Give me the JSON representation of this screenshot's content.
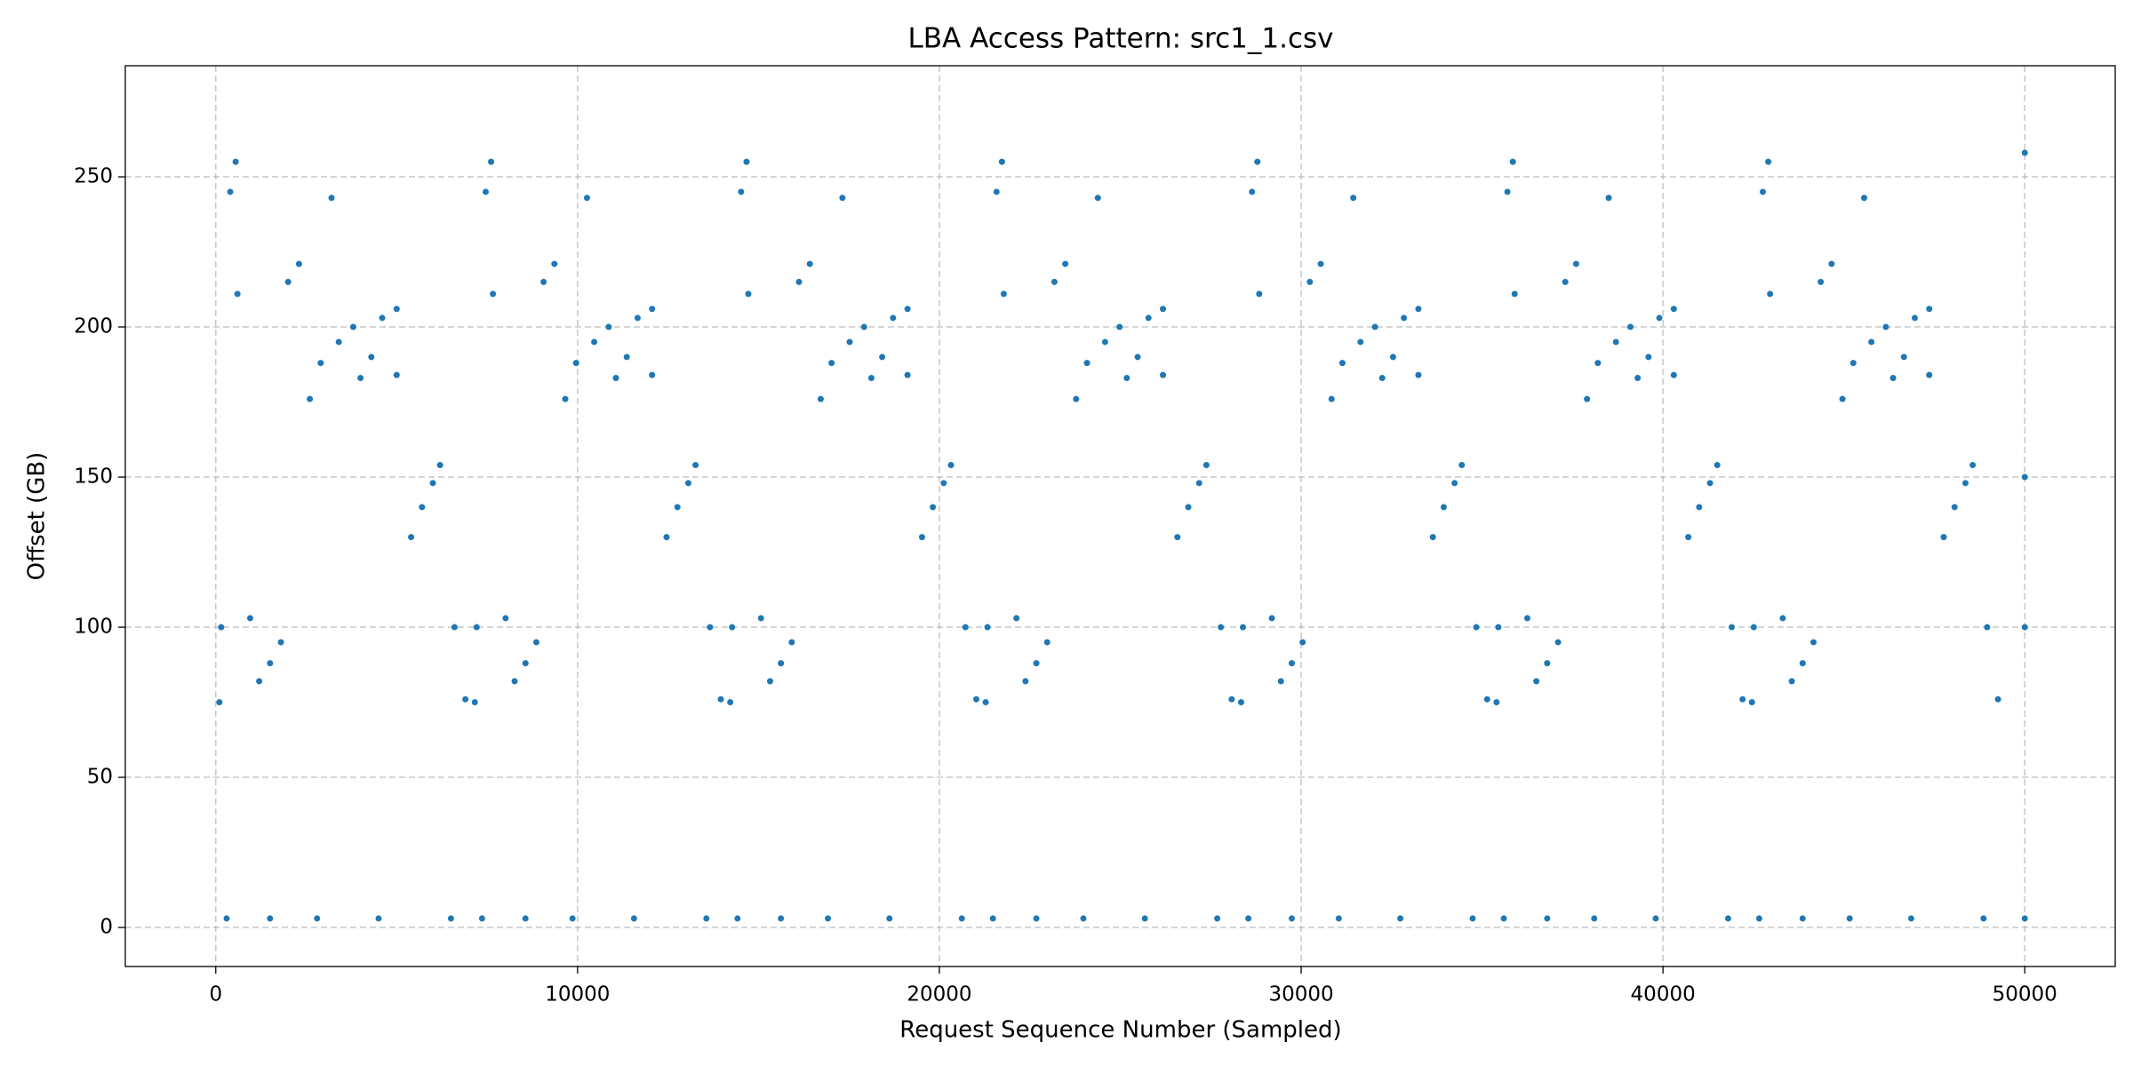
{
  "chart_data": {
    "type": "scatter",
    "title": "LBA Access Pattern: src1_1.csv",
    "x_label": "Request Sequence Number (Sampled)",
    "y_label": "Offset (GB)",
    "color": "#1f77b4",
    "grid": true,
    "xlim": [
      -2500,
      52500
    ],
    "ylim": [
      -13,
      287
    ],
    "xticks": [
      0,
      10000,
      20000,
      30000,
      40000,
      50000
    ],
    "yticks": [
      0,
      50,
      100,
      150,
      200,
      250
    ],
    "x": [
      100,
      150,
      400,
      550,
      600,
      950,
      1200,
      1500,
      1800,
      2000,
      2300,
      2600,
      2900,
      3200,
      3400,
      3800,
      4000,
      4300,
      4600,
      5000,
      5000,
      5400,
      5700,
      6000,
      6200,
      6600,
      6900,
      300,
      1500,
      2800,
      4500,
      6500,
      7160,
      7210,
      7460,
      7610,
      7660,
      8010,
      8260,
      8560,
      8860,
      9060,
      9360,
      9660,
      9960,
      10260,
      10460,
      10860,
      11060,
      11360,
      11660,
      12060,
      12060,
      12460,
      12760,
      13060,
      13260,
      13660,
      13960,
      7360,
      8560,
      9860,
      11560,
      13560,
      14220,
      14270,
      14520,
      14670,
      14720,
      15070,
      15320,
      15620,
      15920,
      16120,
      16420,
      16720,
      17020,
      17320,
      17520,
      17920,
      18120,
      18420,
      18720,
      19120,
      19120,
      19520,
      19820,
      20120,
      20320,
      20720,
      21020,
      14420,
      15620,
      16920,
      18620,
      20620,
      21280,
      21330,
      21580,
      21730,
      21780,
      22130,
      22380,
      22680,
      22980,
      23180,
      23480,
      23780,
      24080,
      24380,
      24580,
      24980,
      25180,
      25480,
      25780,
      26180,
      26180,
      26580,
      26880,
      27180,
      27380,
      27780,
      28080,
      21480,
      22680,
      23980,
      25680,
      27680,
      28340,
      28390,
      28640,
      28790,
      28840,
      29190,
      29440,
      29740,
      30040,
      30240,
      30540,
      30840,
      31140,
      31440,
      31640,
      32040,
      32240,
      32540,
      32840,
      33240,
      33240,
      33640,
      33940,
      34240,
      34440,
      34840,
      35140,
      28540,
      29740,
      31040,
      32740,
      34740,
      35400,
      35450,
      35700,
      35850,
      35900,
      36250,
      36500,
      36800,
      37100,
      37300,
      37600,
      37900,
      38200,
      38500,
      38700,
      39100,
      39300,
      39600,
      39900,
      40300,
      40300,
      40700,
      41000,
      41300,
      41500,
      41900,
      42200,
      35600,
      36800,
      38100,
      39800,
      41800,
      42460,
      42510,
      42760,
      42910,
      42960,
      43310,
      43560,
      43860,
      44160,
      44360,
      44660,
      44960,
      45260,
      45560,
      45760,
      46160,
      46360,
      46660,
      46960,
      47360,
      47360,
      47760,
      48060,
      48360,
      48560,
      48960,
      49260,
      42660,
      43860,
      45160,
      46860,
      48860,
      50000,
      50000,
      50000,
      50000
    ],
    "values": [
      75,
      100,
      245,
      255,
      211,
      103,
      82,
      88,
      95,
      215,
      221,
      176,
      188,
      243,
      195,
      200,
      183,
      190,
      203,
      206,
      184,
      130,
      140,
      148,
      154,
      100,
      76,
      3,
      3,
      3,
      3,
      3,
      75,
      100,
      245,
      255,
      211,
      103,
      82,
      88,
      95,
      215,
      221,
      176,
      188,
      243,
      195,
      200,
      183,
      190,
      203,
      206,
      184,
      130,
      140,
      148,
      154,
      100,
      76,
      3,
      3,
      3,
      3,
      3,
      75,
      100,
      245,
      255,
      211,
      103,
      82,
      88,
      95,
      215,
      221,
      176,
      188,
      243,
      195,
      200,
      183,
      190,
      203,
      206,
      184,
      130,
      140,
      148,
      154,
      100,
      76,
      3,
      3,
      3,
      3,
      3,
      75,
      100,
      245,
      255,
      211,
      103,
      82,
      88,
      95,
      215,
      221,
      176,
      188,
      243,
      195,
      200,
      183,
      190,
      203,
      206,
      184,
      130,
      140,
      148,
      154,
      100,
      76,
      3,
      3,
      3,
      3,
      3,
      75,
      100,
      245,
      255,
      211,
      103,
      82,
      88,
      95,
      215,
      221,
      176,
      188,
      243,
      195,
      200,
      183,
      190,
      203,
      206,
      184,
      130,
      140,
      148,
      154,
      100,
      76,
      3,
      3,
      3,
      3,
      3,
      75,
      100,
      245,
      255,
      211,
      103,
      82,
      88,
      95,
      215,
      221,
      176,
      188,
      243,
      195,
      200,
      183,
      190,
      203,
      206,
      184,
      130,
      140,
      148,
      154,
      100,
      76,
      3,
      3,
      3,
      3,
      3,
      75,
      100,
      245,
      255,
      211,
      103,
      82,
      88,
      95,
      215,
      221,
      176,
      188,
      243,
      195,
      200,
      183,
      190,
      203,
      206,
      184,
      130,
      140,
      148,
      154,
      100,
      76,
      3,
      3,
      3,
      3,
      3,
      258,
      150,
      100,
      3
    ]
  }
}
